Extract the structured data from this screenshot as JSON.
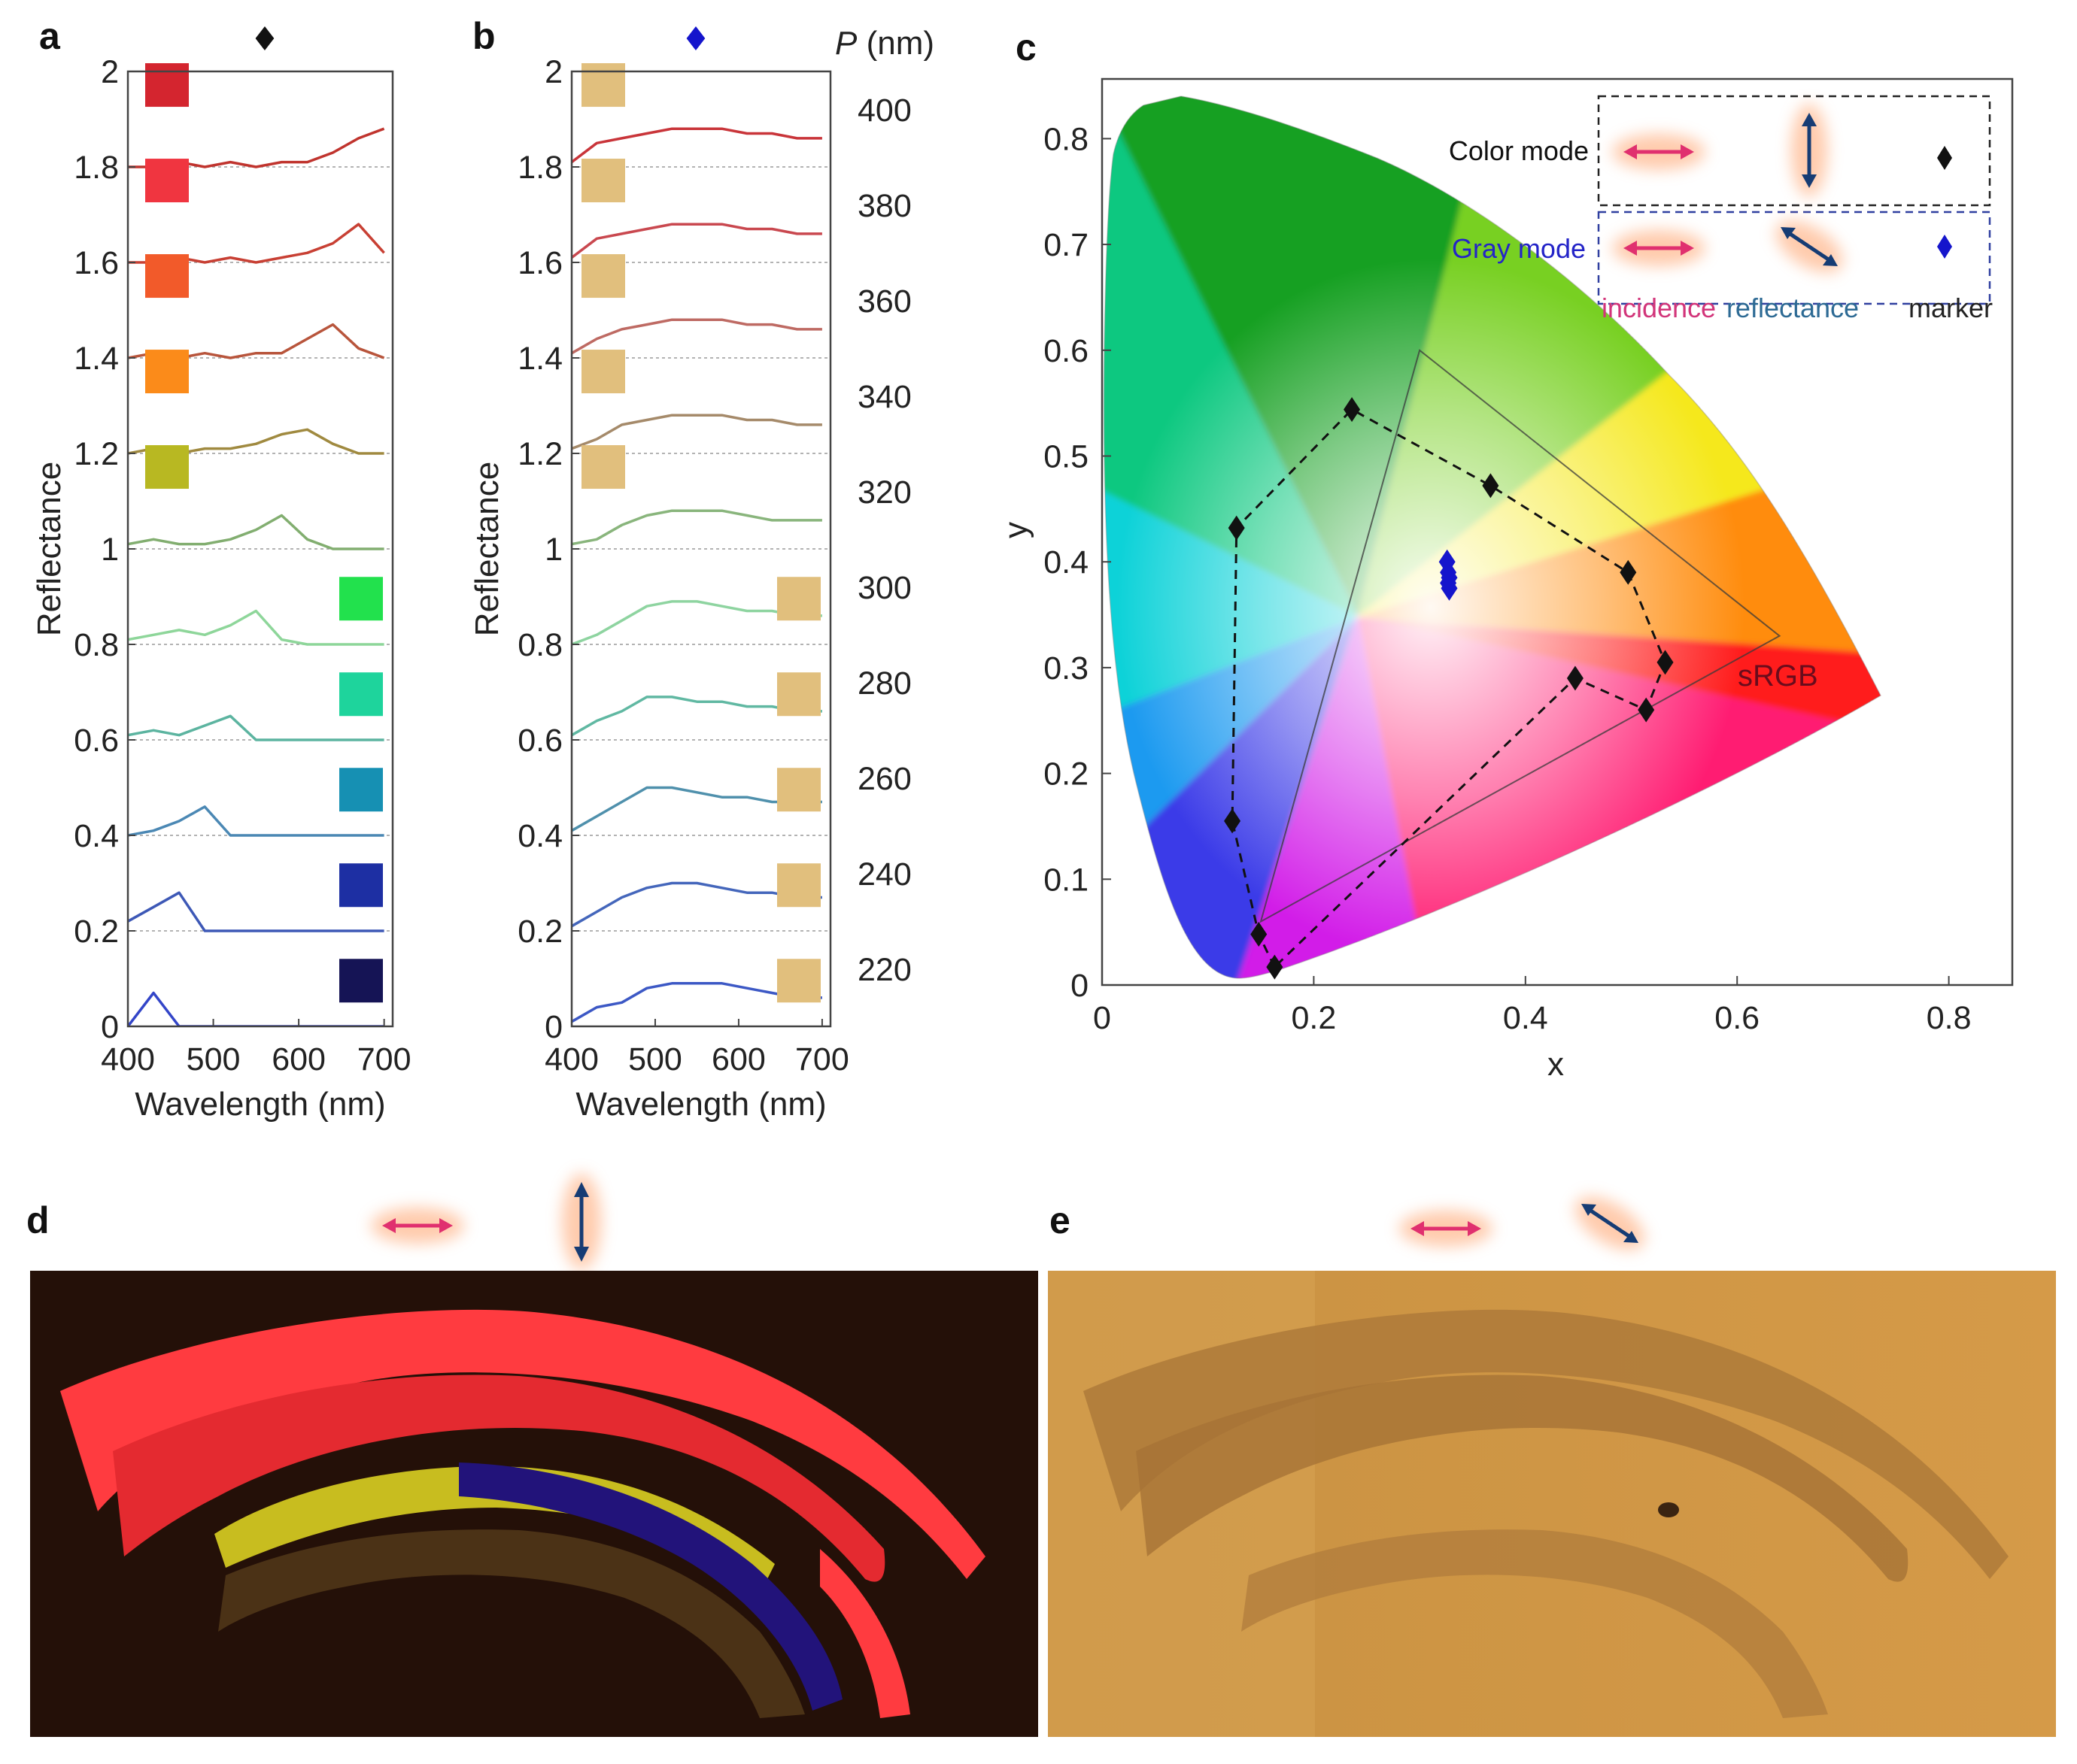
{
  "panels": {
    "a": "a",
    "b": "b",
    "c": "c",
    "d": "d",
    "e": "e"
  },
  "colors": {
    "color_marker": "#111111",
    "gray_marker": "#1515cc",
    "incidence": "#e0306f",
    "reflectance": "#163c74",
    "sample_beige": "#e1bf7d"
  },
  "panel_a": {
    "marker": "♦",
    "xlabel": "Wavelength (nm)",
    "ylabel": "Reflectance",
    "xticks": [
      "400",
      "500",
      "600",
      "700"
    ],
    "yticks": [
      "0",
      "0.2",
      "0.4",
      "0.6",
      "0.8",
      "1",
      "1.2",
      "1.4",
      "1.6",
      "1.8",
      "2"
    ],
    "curve_colors": [
      "#c0342e",
      "#c84034",
      "#b8553c",
      "#a08a40",
      "#82ae70",
      "#8ed69a",
      "#5cb4a0",
      "#4b88b4",
      "#3d58b6",
      "#3345c8"
    ],
    "swatches": [
      "#d4252f",
      "#f03540",
      "#f25a2a",
      "#fb8b1a",
      "#b8b822",
      "#22e14d",
      "#1ed49c",
      "#1690b3",
      "#1d2fa3",
      "#151455"
    ]
  },
  "panel_b": {
    "marker": "♦",
    "p_header": "P (nm)",
    "p_header_italic": "P",
    "p_header_unit": " (nm)",
    "p_labels": [
      "400",
      "380",
      "360",
      "340",
      "320",
      "300",
      "280",
      "260",
      "240",
      "220"
    ],
    "xlabel": "Wavelength (nm)",
    "ylabel": "Reflectance",
    "xticks": [
      "400",
      "500",
      "600",
      "700"
    ],
    "yticks": [
      "0",
      "0.2",
      "0.4",
      "0.6",
      "0.8",
      "1",
      "1.2",
      "1.4",
      "1.6",
      "1.8",
      "2"
    ],
    "curve_colors": [
      "#c9353a",
      "#c9484f",
      "#be6a63",
      "#a58a6a",
      "#89b57c",
      "#8ed4a0",
      "#60b8a2",
      "#4f90ac",
      "#4466bb",
      "#3c58c5"
    ]
  },
  "panel_c": {
    "xlabel": "x",
    "ylabel": "y",
    "xticks": [
      "0",
      "0.2",
      "0.4",
      "0.6",
      "0.8"
    ],
    "yticks": [
      "0",
      "0.1",
      "0.2",
      "0.3",
      "0.4",
      "0.5",
      "0.6",
      "0.7",
      "0.8"
    ],
    "srgb_label": "sRGB",
    "legend": {
      "color_mode": "Color mode",
      "gray_mode": "Gray mode",
      "incidence": "incidence",
      "reflectance": "reflectance",
      "marker": "marker"
    }
  },
  "chart_data": [
    {
      "type": "line",
      "panel": "a",
      "title": "",
      "xlabel": "Wavelength (nm)",
      "ylabel": "Reflectance",
      "xlim": [
        400,
        710
      ],
      "ylim": [
        0,
        2
      ],
      "x": [
        400,
        430,
        460,
        490,
        520,
        550,
        580,
        610,
        640,
        670,
        700
      ],
      "series": [
        {
          "name": "P=400",
          "offset": 1.8,
          "values": [
            0.0,
            0.0,
            0.01,
            0.0,
            0.01,
            0.0,
            0.01,
            0.01,
            0.03,
            0.06,
            0.08
          ]
        },
        {
          "name": "P=380",
          "offset": 1.6,
          "values": [
            0.0,
            0.0,
            0.01,
            0.0,
            0.01,
            0.0,
            0.01,
            0.02,
            0.04,
            0.08,
            0.02
          ]
        },
        {
          "name": "P=360",
          "offset": 1.4,
          "values": [
            0.0,
            0.01,
            0.0,
            0.01,
            0.0,
            0.01,
            0.01,
            0.04,
            0.07,
            0.02,
            0.0
          ]
        },
        {
          "name": "P=340",
          "offset": 1.2,
          "values": [
            0.0,
            0.01,
            0.0,
            0.01,
            0.01,
            0.02,
            0.04,
            0.05,
            0.02,
            0.0,
            0.0
          ]
        },
        {
          "name": "P=320",
          "offset": 1.0,
          "values": [
            0.01,
            0.02,
            0.01,
            0.01,
            0.02,
            0.04,
            0.07,
            0.02,
            0.0,
            0.0,
            0.0
          ]
        },
        {
          "name": "P=300",
          "offset": 0.8,
          "values": [
            0.01,
            0.02,
            0.03,
            0.02,
            0.04,
            0.07,
            0.01,
            0.0,
            0.0,
            0.0,
            0.0
          ]
        },
        {
          "name": "P=280",
          "offset": 0.6,
          "values": [
            0.01,
            0.02,
            0.01,
            0.03,
            0.05,
            0.0,
            0.0,
            0.0,
            0.0,
            0.0,
            0.0
          ]
        },
        {
          "name": "P=260",
          "offset": 0.4,
          "values": [
            0.0,
            0.01,
            0.03,
            0.06,
            0.0,
            0.0,
            0.0,
            0.0,
            0.0,
            0.0,
            0.0
          ]
        },
        {
          "name": "P=240",
          "offset": 0.2,
          "values": [
            0.02,
            0.05,
            0.08,
            0.0,
            0.0,
            0.0,
            0.0,
            0.0,
            0.0,
            0.0,
            0.0
          ]
        },
        {
          "name": "P=220",
          "offset": 0.0,
          "values": [
            0.0,
            0.07,
            0.0,
            0.0,
            0.0,
            0.0,
            0.0,
            0.0,
            0.0,
            0.0,
            0.0
          ]
        }
      ]
    },
    {
      "type": "line",
      "panel": "b",
      "title": "",
      "xlabel": "Wavelength (nm)",
      "ylabel": "Reflectance",
      "xlim": [
        400,
        710
      ],
      "ylim": [
        0,
        2
      ],
      "x": [
        400,
        430,
        460,
        490,
        520,
        550,
        580,
        610,
        640,
        670,
        700
      ],
      "series": [
        {
          "name": "P=400",
          "offset": 1.8,
          "values": [
            0.01,
            0.05,
            0.06,
            0.07,
            0.08,
            0.08,
            0.08,
            0.07,
            0.07,
            0.06,
            0.06
          ]
        },
        {
          "name": "P=380",
          "offset": 1.6,
          "values": [
            0.01,
            0.05,
            0.06,
            0.07,
            0.08,
            0.08,
            0.08,
            0.07,
            0.07,
            0.06,
            0.06
          ]
        },
        {
          "name": "P=360",
          "offset": 1.4,
          "values": [
            0.01,
            0.04,
            0.06,
            0.07,
            0.08,
            0.08,
            0.08,
            0.07,
            0.07,
            0.06,
            0.06
          ]
        },
        {
          "name": "P=340",
          "offset": 1.2,
          "values": [
            0.01,
            0.03,
            0.06,
            0.07,
            0.08,
            0.08,
            0.08,
            0.07,
            0.07,
            0.06,
            0.06
          ]
        },
        {
          "name": "P=320",
          "offset": 1.0,
          "values": [
            0.01,
            0.02,
            0.05,
            0.07,
            0.08,
            0.08,
            0.08,
            0.07,
            0.06,
            0.06,
            0.06
          ]
        },
        {
          "name": "P=300",
          "offset": 0.8,
          "values": [
            0.0,
            0.02,
            0.05,
            0.08,
            0.09,
            0.09,
            0.08,
            0.07,
            0.07,
            0.06,
            0.06
          ]
        },
        {
          "name": "P=280",
          "offset": 0.6,
          "values": [
            0.01,
            0.04,
            0.06,
            0.09,
            0.09,
            0.08,
            0.08,
            0.07,
            0.07,
            0.06,
            0.06
          ]
        },
        {
          "name": "P=260",
          "offset": 0.4,
          "values": [
            0.01,
            0.04,
            0.07,
            0.1,
            0.1,
            0.09,
            0.08,
            0.08,
            0.07,
            0.07,
            0.07
          ]
        },
        {
          "name": "P=240",
          "offset": 0.2,
          "values": [
            0.01,
            0.04,
            0.07,
            0.09,
            0.1,
            0.1,
            0.09,
            0.08,
            0.08,
            0.07,
            0.07
          ]
        },
        {
          "name": "P=220",
          "offset": 0.0,
          "values": [
            0.01,
            0.04,
            0.05,
            0.08,
            0.09,
            0.09,
            0.09,
            0.08,
            0.07,
            0.06,
            0.06
          ]
        }
      ]
    },
    {
      "type": "scatter",
      "panel": "c",
      "title": "",
      "xlabel": "x",
      "ylabel": "y",
      "xlim": [
        0,
        0.86
      ],
      "ylim": [
        0,
        0.86
      ],
      "series": [
        {
          "name": "Color mode",
          "connected": "dashed",
          "x": [
            0.163,
            0.148,
            0.123,
            0.127,
            0.236,
            0.367,
            0.497,
            0.532,
            0.514,
            0.447,
            0.163
          ],
          "y": [
            0.017,
            0.048,
            0.155,
            0.432,
            0.544,
            0.472,
            0.39,
            0.305,
            0.26,
            0.29,
            0.017
          ]
        },
        {
          "name": "Gray mode",
          "x": [
            0.326,
            0.327,
            0.328,
            0.327,
            0.328
          ],
          "y": [
            0.4,
            0.39,
            0.385,
            0.38,
            0.375
          ]
        }
      ],
      "srgb_triangle": {
        "x": [
          0.64,
          0.3,
          0.15
        ],
        "y": [
          0.33,
          0.6,
          0.06
        ]
      },
      "annotations": [
        "sRGB"
      ]
    }
  ]
}
